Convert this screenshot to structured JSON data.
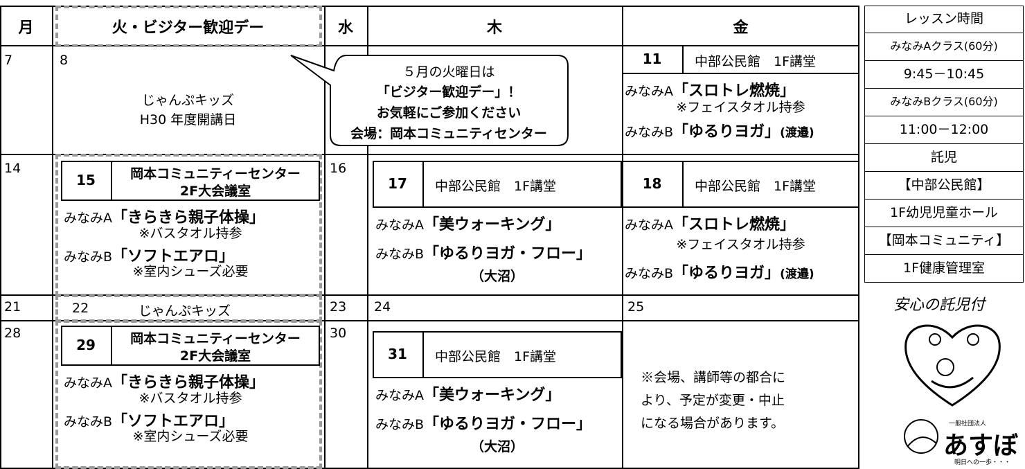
{
  "header": {
    "days": [
      "月",
      "火・ビジター歓迎デー",
      "水",
      "木",
      "金"
    ]
  },
  "week1": {
    "mon": 7,
    "tue": {
      "date": 8,
      "event": [
        "じゃんぷキッズ",
        "H30 年度開講日"
      ]
    },
    "callout": [
      "５月の火曜日は",
      "「ビジター歓迎デー」！",
      "お気軽にご参加ください",
      "会場：岡本コミュニティセンター"
    ],
    "fri": {
      "date": 11,
      "venue": "中部公民館　1F講堂",
      "a_label": "みなみA",
      "a_title": "「スロトレ燃焼」",
      "a_note": "※フェイスタオル持参",
      "b_label": "みなみB",
      "b_title": "「ゆるりヨガ」",
      "b_note": "(渡邉)"
    }
  },
  "week2": {
    "mon": 14,
    "tue": {
      "date": 15,
      "venue": [
        "岡本コミュニティーセンター",
        "2F大会議室"
      ],
      "a_label": "みなみA",
      "a_title": "「きらきら親子体操」",
      "a_note": "※バスタオル持参",
      "b_label": "みなみB",
      "b_title": "「ソフトエアロ」",
      "b_note": "※室内シューズ必要"
    },
    "wed": 16,
    "thu": {
      "date": 17,
      "venue": "中部公民館　1F講堂",
      "a_label": "みなみA",
      "a_title": "「美ウォーキング」",
      "b_label": "みなみB",
      "b_title": "「ゆるりヨガ・フロー」",
      "b_note": "（大沼）"
    },
    "fri": {
      "date": 18,
      "venue": "中部公民館　1F講堂",
      "a_label": "みなみA",
      "a_title": "「スロトレ燃焼」",
      "a_note": "※フェイスタオル持参",
      "b_label": "みなみB",
      "b_title": "「ゆるりヨガ」",
      "b_note": "(渡邉)"
    }
  },
  "week3": {
    "mon": 21,
    "tue": {
      "date": 22,
      "event": "じゃんぷキッズ"
    },
    "wed": 23,
    "thu": 24,
    "fri": 25
  },
  "week4": {
    "mon": 28,
    "tue": {
      "date": 29,
      "venue": [
        "岡本コミュニティーセンター",
        "2F大会議室"
      ],
      "a_label": "みなみA",
      "a_title": "「きらきら親子体操」",
      "a_note": "※バスタオル持参",
      "b_label": "みなみB",
      "b_title": "「ソフトエアロ」",
      "b_note": "※室内シューズ必要"
    },
    "wed": 30,
    "thu": {
      "date": 31,
      "venue": "中部公民館　1F講堂",
      "a_label": "みなみA",
      "a_title": "「美ウォーキング」",
      "b_label": "みなみB",
      "b_title": "「ゆるりヨガ・フロー」",
      "b_note": "（大沼）"
    },
    "fri_note": [
      "※会場、講師等の都合に",
      "より、予定が変更・中止",
      "になる場合があります。"
    ]
  },
  "side": {
    "rows": [
      "レッスン時間",
      "みなみAクラス(60分)",
      "9:45－10:45",
      "みなみBクラス(60分)",
      "11:00－12:00",
      "託児",
      "【中部公民館】",
      "1F幼児児童ホール",
      "【岡本コミュニティ】",
      "1F健康管理室"
    ],
    "badge": "安心の託児付",
    "org_type": "一般社団法人",
    "org_name": "あすぼ",
    "org_motto": "明日への一歩・・・"
  }
}
